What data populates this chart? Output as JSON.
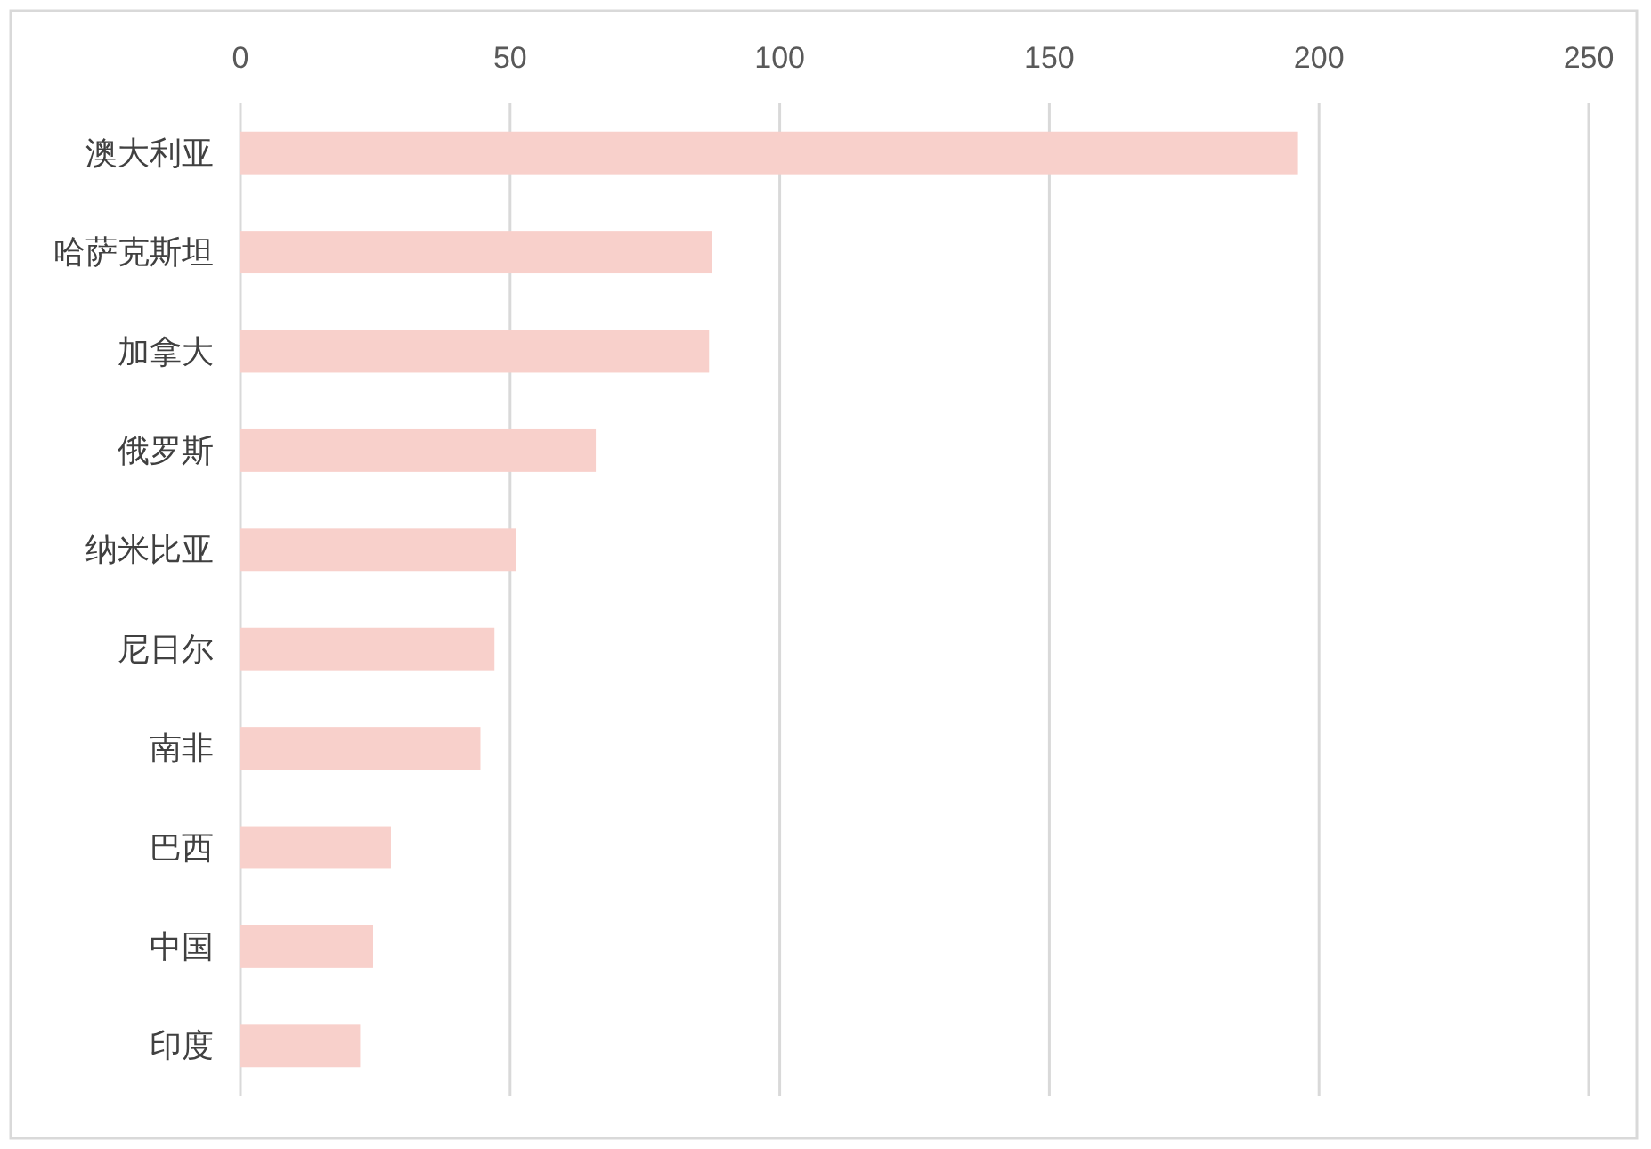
{
  "chart_data": {
    "type": "bar",
    "orientation": "horizontal",
    "categories": [
      "澳大利亚",
      "哈萨克斯坦",
      "加拿大",
      "俄罗斯",
      "纳米比亚",
      "尼日尔",
      "南非",
      "巴西",
      "中国",
      "印度"
    ],
    "values": [
      196.1,
      87.5,
      86.9,
      65.9,
      51.1,
      47.1,
      44.5,
      27.9,
      24.6,
      22.2
    ],
    "color": "#f8d0cb",
    "xlim": [
      0,
      250
    ],
    "xticks": [
      0,
      50,
      100,
      150,
      200,
      250
    ],
    "grid": "x"
  }
}
